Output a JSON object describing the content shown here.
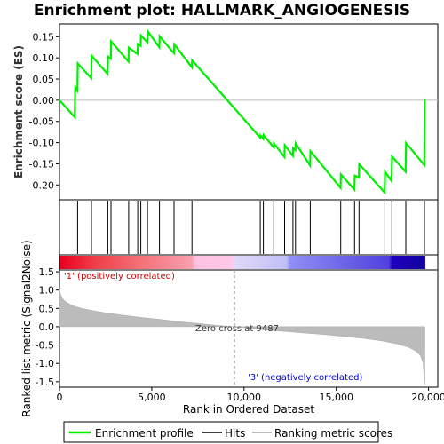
{
  "chart_data": [
    {
      "type": "line",
      "title": "Enrichment plot: HALLMARK_ANGIOGENESIS",
      "ylabel": "Enrichment score (ES)",
      "xlim": [
        0,
        20500
      ],
      "ylim": [
        -0.235,
        0.18
      ],
      "y_ticks": [
        0.15,
        0.1,
        0.05,
        0.0,
        -0.05,
        -0.1,
        -0.15,
        -0.2
      ],
      "y_tick_labels": [
        "0.15",
        "0.10",
        "0.05",
        "0.00",
        "-0.05",
        "-0.10",
        "-0.15",
        "-0.20"
      ],
      "series": [
        {
          "name": "Enrichment profile",
          "color": "#00ee00",
          "x": [
            0,
            830,
            850,
            970,
            990,
            1720,
            1740,
            2610,
            2630,
            2780,
            2800,
            3740,
            3760,
            4230,
            4250,
            4400,
            4420,
            4760,
            4780,
            5410,
            5430,
            6200,
            6220,
            7170,
            7190,
            10870,
            10890,
            11040,
            11060,
            11600,
            11620,
            12190,
            12210,
            12640,
            12660,
            12780,
            12800,
            13580,
            13600,
            15230,
            15250,
            15980,
            16000,
            16220,
            16240,
            17620,
            17640,
            18000,
            18020,
            18760,
            18780,
            19770,
            19790
          ],
          "y": [
            0.0,
            -0.04,
            0.03,
            0.022,
            0.087,
            0.052,
            0.105,
            0.062,
            0.103,
            0.098,
            0.139,
            0.091,
            0.124,
            0.109,
            0.133,
            0.128,
            0.153,
            0.137,
            0.163,
            0.125,
            0.151,
            0.111,
            0.132,
            0.078,
            0.094,
            -0.088,
            -0.083,
            -0.091,
            -0.082,
            -0.111,
            -0.102,
            -0.134,
            -0.106,
            -0.131,
            -0.113,
            -0.118,
            -0.102,
            -0.154,
            -0.12,
            -0.207,
            -0.175,
            -0.211,
            -0.178,
            -0.182,
            -0.151,
            -0.218,
            -0.169,
            -0.191,
            -0.133,
            -0.169,
            -0.101,
            -0.153,
            0.002
          ]
        }
      ]
    },
    {
      "type": "hits",
      "series": [
        {
          "name": "Hits",
          "color": "#000000",
          "x": [
            840,
            980,
            1730,
            2620,
            2790,
            3750,
            4240,
            4410,
            4770,
            5420,
            6210,
            7180,
            10880,
            11050,
            11610,
            12200,
            12650,
            12790,
            13590,
            15240,
            15990,
            16230,
            17630,
            18010,
            18770,
            19780
          ]
        }
      ]
    },
    {
      "type": "area",
      "ylabel": "Ranked list metric (Signal2Noise)",
      "xlabel": "Rank in Ordered Dataset",
      "xlim": [
        0,
        20500
      ],
      "ylim": [
        -1.65,
        1.55
      ],
      "x_ticks": [
        0,
        5000,
        10000,
        15000,
        20000
      ],
      "x_tick_labels": [
        "0",
        "5,000",
        "10,000",
        "15,000",
        "20,000"
      ],
      "y_ticks": [
        1.5,
        1.0,
        0.5,
        0.0,
        -0.5,
        -1.0,
        -1.5
      ],
      "y_tick_labels": [
        "1.5",
        "1.0",
        "0.5",
        "0.0",
        "-0.5",
        "-1.0",
        "-1.5"
      ],
      "zero_cross": 9487,
      "annotations": {
        "zero_cross": "Zero cross at 9487",
        "positive": "'1' (positively correlated)",
        "negative": "'3' (negatively correlated)"
      },
      "series": [
        {
          "name": "Ranking metric scores",
          "color": "#bbbbbb",
          "x": [
            0,
            50,
            150,
            300,
            500,
            800,
            1200,
            1800,
            2500,
            3500,
            4500,
            5500,
            6500,
            7500,
            8500,
            9487,
            10500,
            11500,
            12500,
            13500,
            14500,
            15500,
            16500,
            17500,
            18300,
            18900,
            19300,
            19550,
            19700,
            19790,
            19800
          ],
          "y": [
            1.05,
            0.9,
            0.78,
            0.7,
            0.63,
            0.56,
            0.5,
            0.44,
            0.38,
            0.31,
            0.25,
            0.2,
            0.14,
            0.09,
            0.04,
            0.0,
            -0.05,
            -0.1,
            -0.14,
            -0.18,
            -0.22,
            -0.27,
            -0.32,
            -0.39,
            -0.47,
            -0.56,
            -0.66,
            -0.78,
            -0.98,
            -1.58,
            -1.58
          ]
        }
      ]
    }
  ],
  "legend": {
    "items": [
      {
        "label": "Enrichment profile",
        "color": "#00ee00"
      },
      {
        "label": "Hits",
        "color": "#000000"
      },
      {
        "label": "Ranking metric scores",
        "color": "#bbbbbb"
      }
    ]
  }
}
